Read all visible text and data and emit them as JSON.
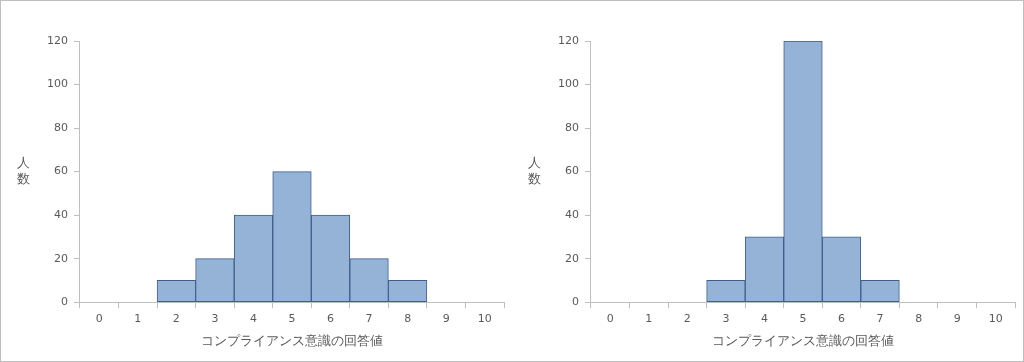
{
  "chart_data": [
    {
      "type": "bar",
      "xlabel": "コンプライアンス意識の回答値",
      "ylabel": "人数",
      "categories": [
        "0",
        "1",
        "2",
        "3",
        "4",
        "5",
        "6",
        "7",
        "8",
        "9",
        "10"
      ],
      "values": [
        0,
        0,
        10,
        20,
        40,
        60,
        40,
        20,
        10,
        0,
        0
      ],
      "color": "#95b3d7",
      "ylim": [
        0,
        120
      ],
      "yticks": [
        0,
        20,
        40,
        60,
        80,
        100,
        120
      ],
      "grid": false,
      "legend": false
    },
    {
      "type": "bar",
      "xlabel": "コンプライアンス意識の回答値",
      "ylabel": "人数",
      "categories": [
        "0",
        "1",
        "2",
        "3",
        "4",
        "5",
        "6",
        "7",
        "8",
        "9",
        "10"
      ],
      "values": [
        0,
        0,
        0,
        10,
        30,
        120,
        30,
        10,
        0,
        0,
        0
      ],
      "color": "#95b3d7",
      "ylim": [
        0,
        120
      ],
      "yticks": [
        0,
        20,
        40,
        60,
        80,
        100,
        120
      ],
      "grid": false,
      "legend": false
    }
  ]
}
